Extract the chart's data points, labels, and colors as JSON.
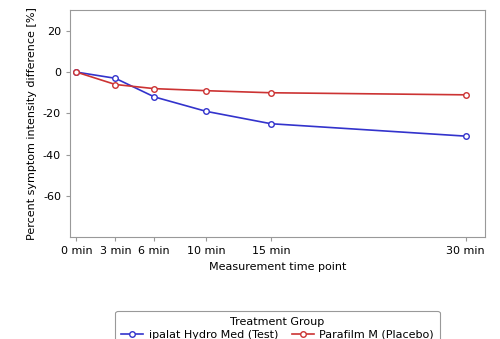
{
  "time_labels": [
    "0 min",
    "3 min",
    "6 min",
    "10 min",
    "15 min",
    "30 min"
  ],
  "time_values": [
    0,
    3,
    6,
    10,
    15,
    30
  ],
  "test_values": [
    0,
    -3,
    -12,
    -19,
    -25,
    -31
  ],
  "placebo_values": [
    0,
    -6,
    -8,
    -9,
    -10,
    -11
  ],
  "test_color": "#3333cc",
  "placebo_color": "#cc3333",
  "test_label": "ipalat Hydro Med (Test)",
  "placebo_label": "Parafilm M (Placebo)",
  "treatment_group_label": "Treatment Group",
  "xlabel": "Measurement time point",
  "ylabel": "Percent symptom intensity difference [%]",
  "ylim": [
    -80,
    30
  ],
  "yticks": [
    -60,
    -40,
    -20,
    0,
    20
  ],
  "bg_color": "#ffffff",
  "plot_bg_color": "#ffffff",
  "marker": "o",
  "linewidth": 1.2,
  "markersize": 4,
  "tick_fontsize": 8,
  "label_fontsize": 8,
  "legend_fontsize": 8
}
